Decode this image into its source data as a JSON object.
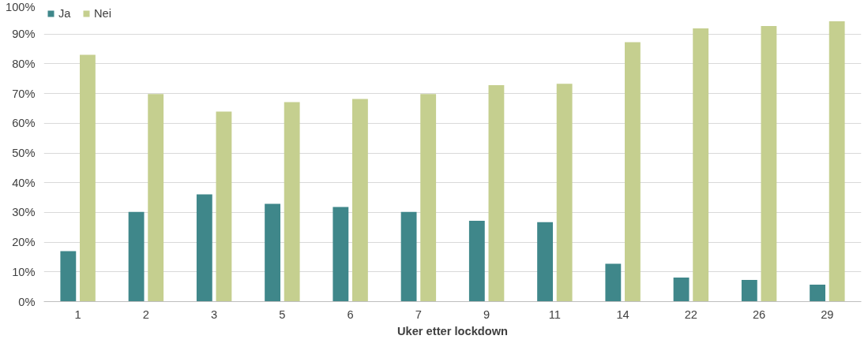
{
  "chart_data": {
    "type": "bar",
    "xlabel": "Uker etter lockdown",
    "categories": [
      "1",
      "2",
      "3",
      "5",
      "6",
      "7",
      "9",
      "11",
      "14",
      "22",
      "26",
      "29"
    ],
    "series": [
      {
        "name": "Ja",
        "color": "#3f878a",
        "values": [
          17.0,
          30.2,
          36.1,
          32.9,
          31.8,
          30.2,
          27.2,
          26.7,
          12.7,
          8.1,
          7.3,
          5.7
        ]
      },
      {
        "name": "Nei",
        "color": "#c5cf8f",
        "values": [
          83.0,
          69.8,
          63.9,
          67.1,
          68.2,
          69.8,
          72.8,
          73.3,
          87.3,
          91.9,
          92.7,
          94.3
        ]
      }
    ],
    "ylim": [
      0,
      100
    ],
    "yticks": [
      {
        "value": 0,
        "label": "0%"
      },
      {
        "value": 10,
        "label": "10%"
      },
      {
        "value": 20,
        "label": "20%"
      },
      {
        "value": 30,
        "label": "30%"
      },
      {
        "value": 40,
        "label": "40%"
      },
      {
        "value": 50,
        "label": "50%"
      },
      {
        "value": 60,
        "label": "60%"
      },
      {
        "value": 70,
        "label": "70%"
      },
      {
        "value": 80,
        "label": "80%"
      },
      {
        "value": 90,
        "label": "90%"
      },
      {
        "value": 100,
        "label": "100%"
      }
    ],
    "grid": "y",
    "legend": "top left"
  }
}
